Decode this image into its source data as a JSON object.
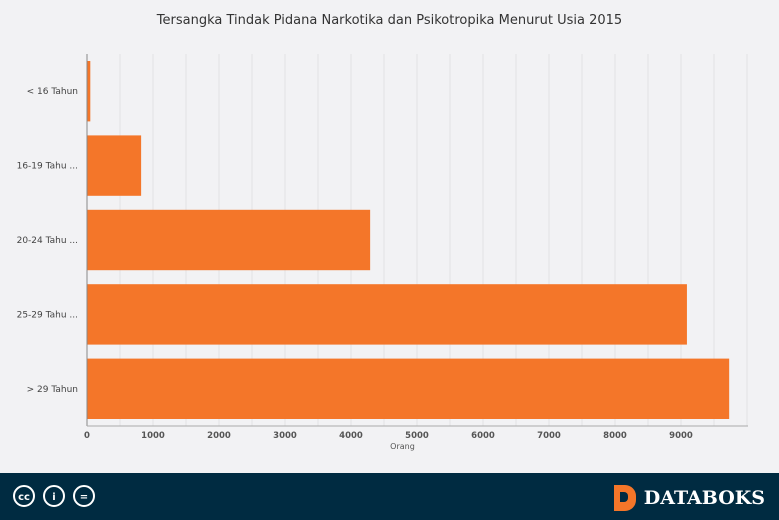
{
  "chart_data": {
    "type": "bar",
    "orientation": "horizontal",
    "title": "Tersangka Tindak Pidana Narkotika dan Psikotropika Menurut Usia 2015",
    "categories": [
      "< 16 Tahun",
      "16-19 Tahu ...",
      "20-24 Tahu ...",
      "25-29 Tahu ...",
      "> 29 Tahun"
    ],
    "values": [
      50,
      820,
      4290,
      9090,
      9730
    ],
    "xlabel": "Orang",
    "xlim": [
      0,
      10000
    ],
    "xticks": [
      0,
      1000,
      2000,
      3000,
      4000,
      5000,
      6000,
      7000,
      8000,
      9000
    ],
    "bar_color": "#f47629",
    "grid": true
  },
  "footer": {
    "cc_icons": [
      "cc-icon",
      "by-icon",
      "nd-icon"
    ],
    "cc_labels": [
      "cc",
      "i",
      "="
    ],
    "brand": "DATABOKS"
  }
}
